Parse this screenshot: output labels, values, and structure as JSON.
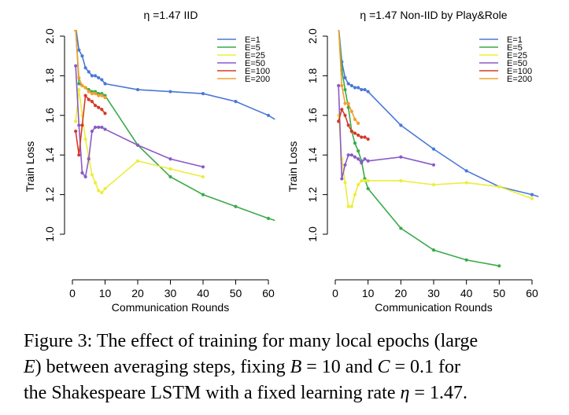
{
  "figure": {
    "caption": {
      "line1": "Figure 3: The effect of training for many local epochs (large",
      "line2_a": "E",
      "line2_b": ") between averaging steps, fixing ",
      "line2_c": "B",
      "line2_d": " = 10 and ",
      "line2_e": "C",
      "line2_f": " = 0.1 for",
      "line3_a": "the Shakespeare LSTM with a fixed learning rate ",
      "line3_b": "η",
      "line3_c": " = 1.47."
    }
  },
  "chart_data": [
    {
      "type": "line",
      "title": "η =1.47 IID",
      "xlabel": "Communication Rounds",
      "ylabel": "Train Loss",
      "xlim": [
        0,
        62
      ],
      "ylim": [
        0.9,
        2.05
      ],
      "xticks": [
        0,
        10,
        20,
        30,
        40,
        50,
        60
      ],
      "yticks": [
        1.0,
        1.2,
        1.4,
        1.6,
        1.8,
        2.0
      ],
      "ytick_labels": [
        "1.0",
        "1.2",
        "1.4",
        "1.6",
        "1.8",
        "2.0"
      ],
      "legend_position": "top-right",
      "grid": false,
      "series": [
        {
          "name": "E=1",
          "color": "#4a78d8",
          "x": [
            1,
            2,
            3,
            4,
            5,
            6,
            7,
            8,
            9,
            10,
            20,
            30,
            40,
            50,
            60,
            62
          ],
          "y": [
            2.05,
            1.93,
            1.9,
            1.84,
            1.82,
            1.8,
            1.8,
            1.79,
            1.78,
            1.76,
            1.73,
            1.72,
            1.71,
            1.67,
            1.6,
            1.58
          ]
        },
        {
          "name": "E=5",
          "color": "#3aaa4a",
          "x": [
            1,
            2,
            3,
            4,
            5,
            6,
            7,
            8,
            9,
            10,
            20,
            30,
            40,
            50,
            60,
            62
          ],
          "y": [
            2.05,
            1.76,
            1.75,
            1.74,
            1.73,
            1.72,
            1.72,
            1.71,
            1.71,
            1.7,
            1.45,
            1.29,
            1.2,
            1.14,
            1.08,
            1.07
          ]
        },
        {
          "name": "E=25",
          "color": "#eded3a",
          "x": [
            1,
            2,
            3,
            4,
            5,
            6,
            7,
            8,
            9,
            10,
            20,
            30,
            40
          ],
          "y": [
            1.57,
            1.73,
            1.6,
            1.48,
            1.39,
            1.3,
            1.26,
            1.22,
            1.21,
            1.23,
            1.37,
            1.33,
            1.29
          ]
        },
        {
          "name": "E=50",
          "color": "#8a5ac8",
          "x": [
            1,
            2,
            3,
            4,
            5,
            6,
            7,
            8,
            9,
            10,
            20,
            30,
            40
          ],
          "y": [
            1.85,
            1.55,
            1.31,
            1.29,
            1.38,
            1.52,
            1.54,
            1.54,
            1.54,
            1.53,
            1.45,
            1.38,
            1.34
          ]
        },
        {
          "name": "E=100",
          "color": "#d63a2a",
          "x": [
            1,
            2,
            3,
            4,
            5,
            6,
            7,
            8,
            9,
            10
          ],
          "y": [
            1.52,
            1.4,
            1.55,
            1.7,
            1.68,
            1.67,
            1.65,
            1.64,
            1.63,
            1.61
          ]
        },
        {
          "name": "E=200",
          "color": "#f0a030",
          "x": [
            1,
            2,
            3,
            4,
            5,
            6,
            7,
            8,
            9,
            10
          ],
          "y": [
            2.03,
            1.79,
            1.75,
            1.74,
            1.72,
            1.71,
            1.71,
            1.7,
            1.7,
            1.69
          ]
        }
      ]
    },
    {
      "type": "line",
      "title": "η =1.47 Non-IID by Play&Role",
      "xlabel": "Communication Rounds",
      "ylabel": "Train Loss",
      "xlim": [
        0,
        62
      ],
      "ylim": [
        0.9,
        2.05
      ],
      "xticks": [
        0,
        10,
        20,
        30,
        40,
        50,
        60
      ],
      "yticks": [
        1.0,
        1.2,
        1.4,
        1.6,
        1.8,
        2.0
      ],
      "ytick_labels": [
        "1.0",
        "1.2",
        "1.4",
        "1.6",
        "1.8",
        "2.0"
      ],
      "legend_position": "top-right",
      "grid": false,
      "series": [
        {
          "name": "E=1",
          "color": "#4a78d8",
          "x": [
            1,
            2,
            3,
            4,
            5,
            6,
            7,
            8,
            9,
            10,
            20,
            30,
            40,
            50,
            60,
            62
          ],
          "y": [
            2.05,
            1.87,
            1.79,
            1.76,
            1.75,
            1.74,
            1.74,
            1.73,
            1.73,
            1.72,
            1.55,
            1.43,
            1.32,
            1.24,
            1.2,
            1.19
          ]
        },
        {
          "name": "E=5",
          "color": "#3aaa4a",
          "x": [
            1,
            2,
            3,
            4,
            5,
            6,
            7,
            8,
            9,
            10,
            20,
            30,
            40,
            50
          ],
          "y": [
            2.05,
            1.83,
            1.73,
            1.64,
            1.52,
            1.46,
            1.42,
            1.37,
            1.28,
            1.23,
            1.03,
            0.92,
            0.87,
            0.84
          ]
        },
        {
          "name": "E=25",
          "color": "#eded3a",
          "x": [
            1,
            2,
            3,
            4,
            5,
            6,
            7,
            8,
            9,
            10,
            20,
            30,
            40,
            50,
            60
          ],
          "y": [
            1.6,
            1.38,
            1.26,
            1.14,
            1.14,
            1.2,
            1.25,
            1.27,
            1.27,
            1.27,
            1.27,
            1.25,
            1.26,
            1.24,
            1.18
          ]
        },
        {
          "name": "E=50",
          "color": "#8a5ac8",
          "x": [
            1,
            2,
            3,
            4,
            5,
            6,
            7,
            8,
            9,
            10,
            20,
            30
          ],
          "y": [
            1.75,
            1.28,
            1.35,
            1.4,
            1.4,
            1.39,
            1.38,
            1.36,
            1.38,
            1.37,
            1.39,
            1.35
          ]
        },
        {
          "name": "E=100",
          "color": "#d63a2a",
          "x": [
            1,
            2,
            3,
            4,
            5,
            6,
            7,
            8,
            9,
            10
          ],
          "y": [
            1.57,
            1.63,
            1.6,
            1.55,
            1.52,
            1.51,
            1.5,
            1.49,
            1.49,
            1.48
          ]
        },
        {
          "name": "E=200",
          "color": "#f0a030",
          "x": [
            1,
            2,
            3,
            4,
            5,
            6,
            7
          ],
          "y": [
            2.05,
            1.75,
            1.66,
            1.66,
            1.62,
            1.58,
            1.56
          ]
        }
      ]
    }
  ]
}
